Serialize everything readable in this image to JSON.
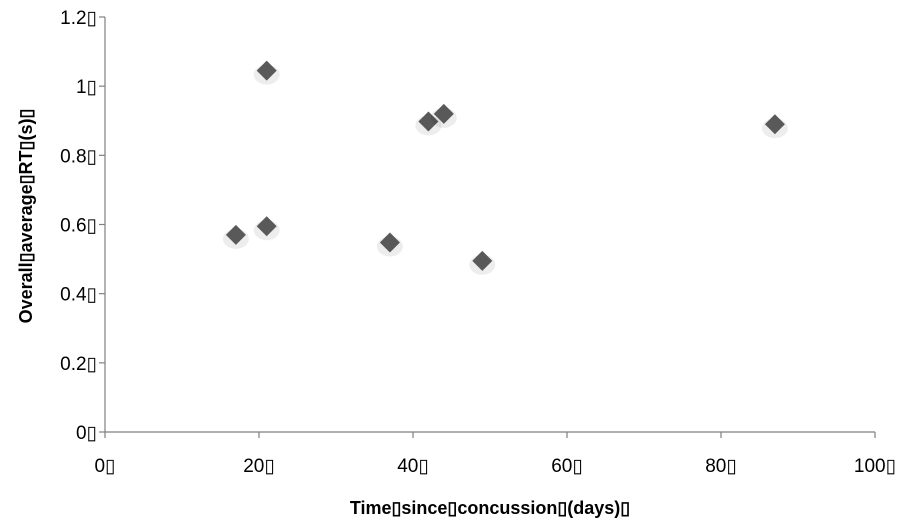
{
  "chart_data": {
    "type": "scatter",
    "title": "",
    "xlabel": "Time▯since▯concussion▯(days)▯",
    "ylabel": "Overall▯average▯RT▯(s)▯",
    "xlim": [
      0,
      100
    ],
    "ylim": [
      0,
      1.2
    ],
    "x_ticks": [
      0,
      20,
      40,
      60,
      80,
      100
    ],
    "y_ticks": [
      0,
      0.2,
      0.4,
      0.6,
      0.8,
      1.0,
      1.2
    ],
    "x_tick_labels": [
      "0▯",
      "20▯",
      "40▯",
      "60▯",
      "80▯",
      "100▯"
    ],
    "y_tick_labels": [
      "0▯",
      "0.2▯",
      "0.4▯",
      "0.6▯",
      "0.8▯",
      "1▯",
      "1.2▯"
    ],
    "grid": false,
    "marker_color": "#595959",
    "points": [
      {
        "x": 17,
        "y": 0.57
      },
      {
        "x": 21,
        "y": 0.595
      },
      {
        "x": 21,
        "y": 1.045
      },
      {
        "x": 37,
        "y": 0.548
      },
      {
        "x": 42,
        "y": 0.898
      },
      {
        "x": 44,
        "y": 0.92
      },
      {
        "x": 49,
        "y": 0.495
      },
      {
        "x": 87,
        "y": 0.89
      }
    ]
  }
}
